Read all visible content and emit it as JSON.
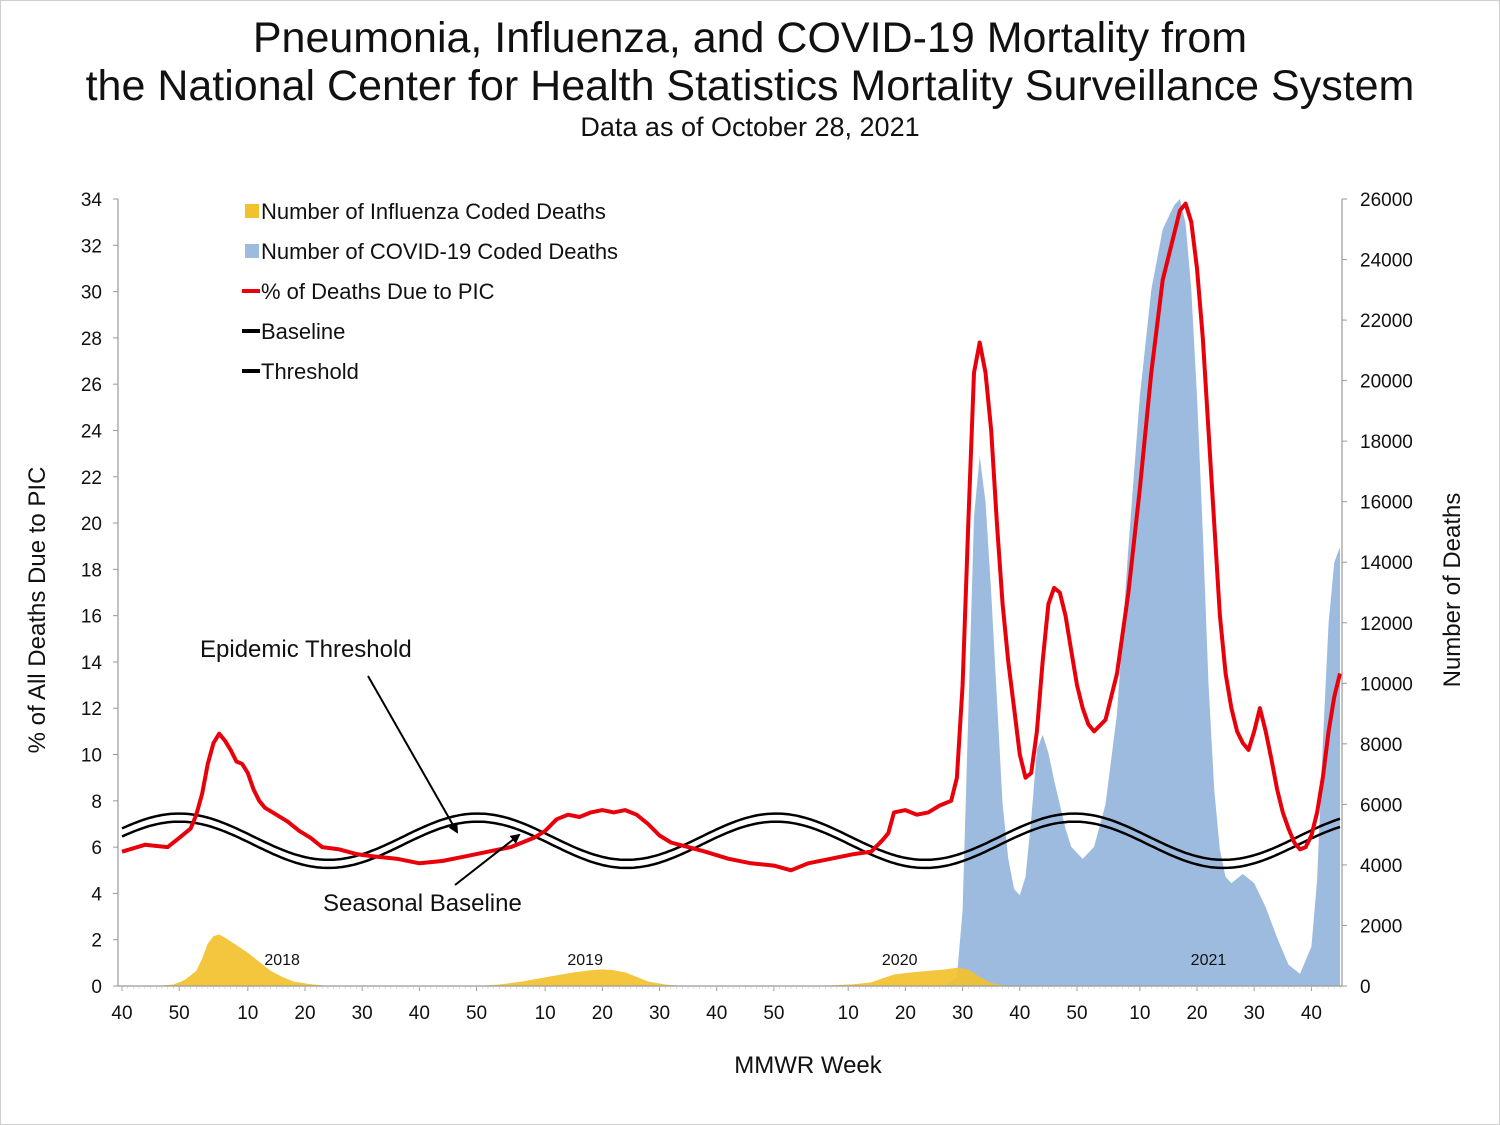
{
  "title_line1": "Pneumonia, Influenza, and COVID-19 Mortality from",
  "title_line2": "the National Center for Health Statistics Mortality Surveillance System",
  "subtitle": "Data as of October 28, 2021",
  "chart_data": {
    "type": "area",
    "xlabel": "MMWR Week",
    "ylabel_left": "% of All Deaths Due to PIC",
    "ylabel_right": "Number of Deaths",
    "ylim_left": [
      0,
      34
    ],
    "ylim_right": [
      0,
      26000
    ],
    "yticks_left": [
      "0",
      "2",
      "4",
      "6",
      "8",
      "10",
      "12",
      "14",
      "16",
      "18",
      "20",
      "22",
      "24",
      "26",
      "28",
      "30",
      "32",
      "34"
    ],
    "yticks_right": [
      "0",
      "2000",
      "4000",
      "6000",
      "8000",
      "10000",
      "12000",
      "14000",
      "16000",
      "18000",
      "20000",
      "22000",
      "24000",
      "26000"
    ],
    "xticks": [
      "40",
      "50",
      "10",
      "20",
      "30",
      "40",
      "50",
      "10",
      "20",
      "30",
      "40",
      "50",
      "10",
      "20",
      "30",
      "40",
      "50",
      "10",
      "20",
      "30",
      "40"
    ],
    "year_labels": [
      "2018",
      "2019",
      "2020",
      "2021"
    ],
    "annotations": {
      "threshold": "Epidemic Threshold",
      "baseline": "Seasonal Baseline"
    },
    "legend": [
      {
        "label": "Number of Influenza Coded Deaths",
        "color": "#f2c12e",
        "kind": "area"
      },
      {
        "label": "Number of COVID-19 Coded Deaths",
        "color": "#9dbbdf",
        "kind": "area"
      },
      {
        "label": "% of Deaths Due to PIC",
        "color": "#e8000b",
        "kind": "line"
      },
      {
        "label": "Baseline",
        "color": "#000000",
        "kind": "line"
      },
      {
        "label": "Threshold",
        "color": "#000000",
        "kind": "line"
      }
    ],
    "week_start": 0,
    "week_end": 213,
    "series_week_index": "0 = MMWR week 40 of 2017",
    "pic_percent": [
      [
        0,
        5.8
      ],
      [
        4,
        6.1
      ],
      [
        8,
        6.0
      ],
      [
        10,
        6.4
      ],
      [
        12,
        6.8
      ],
      [
        13,
        7.4
      ],
      [
        14,
        8.3
      ],
      [
        15,
        9.6
      ],
      [
        16,
        10.5
      ],
      [
        17,
        10.9
      ],
      [
        18,
        10.6
      ],
      [
        19,
        10.2
      ],
      [
        20,
        9.7
      ],
      [
        21,
        9.6
      ],
      [
        22,
        9.2
      ],
      [
        23,
        8.5
      ],
      [
        24,
        8.0
      ],
      [
        25,
        7.7
      ],
      [
        27,
        7.4
      ],
      [
        29,
        7.1
      ],
      [
        31,
        6.7
      ],
      [
        33,
        6.4
      ],
      [
        35,
        6.0
      ],
      [
        38,
        5.9
      ],
      [
        41,
        5.7
      ],
      [
        44,
        5.6
      ],
      [
        48,
        5.5
      ],
      [
        52,
        5.3
      ],
      [
        56,
        5.4
      ],
      [
        60,
        5.6
      ],
      [
        64,
        5.8
      ],
      [
        68,
        6.0
      ],
      [
        72,
        6.4
      ],
      [
        74,
        6.7
      ],
      [
        76,
        7.2
      ],
      [
        78,
        7.4
      ],
      [
        80,
        7.3
      ],
      [
        82,
        7.5
      ],
      [
        84,
        7.6
      ],
      [
        86,
        7.5
      ],
      [
        88,
        7.6
      ],
      [
        90,
        7.4
      ],
      [
        92,
        7.0
      ],
      [
        94,
        6.5
      ],
      [
        96,
        6.2
      ],
      [
        99,
        6.0
      ],
      [
        102,
        5.8
      ],
      [
        106,
        5.5
      ],
      [
        110,
        5.3
      ],
      [
        114,
        5.2
      ],
      [
        117,
        5.0
      ],
      [
        120,
        5.3
      ],
      [
        124,
        5.5
      ],
      [
        128,
        5.7
      ],
      [
        131,
        5.8
      ],
      [
        133,
        6.3
      ],
      [
        134,
        6.6
      ],
      [
        135,
        7.5
      ],
      [
        137,
        7.6
      ],
      [
        139,
        7.4
      ],
      [
        141,
        7.5
      ],
      [
        143,
        7.8
      ],
      [
        145,
        8.0
      ],
      [
        146,
        9.0
      ],
      [
        147,
        13.0
      ],
      [
        148,
        20.0
      ],
      [
        149,
        26.5
      ],
      [
        150,
        27.8
      ],
      [
        151,
        26.5
      ],
      [
        152,
        24.0
      ],
      [
        153,
        20.0
      ],
      [
        154,
        16.5
      ],
      [
        155,
        14.0
      ],
      [
        156,
        12.0
      ],
      [
        157,
        10.0
      ],
      [
        158,
        9.0
      ],
      [
        159,
        9.2
      ],
      [
        160,
        11.0
      ],
      [
        161,
        14.0
      ],
      [
        162,
        16.5
      ],
      [
        163,
        17.2
      ],
      [
        164,
        17.0
      ],
      [
        165,
        16.0
      ],
      [
        166,
        14.5
      ],
      [
        167,
        13.0
      ],
      [
        168,
        12.0
      ],
      [
        169,
        11.3
      ],
      [
        170,
        11.0
      ],
      [
        172,
        11.5
      ],
      [
        174,
        13.5
      ],
      [
        176,
        17.0
      ],
      [
        178,
        21.5
      ],
      [
        180,
        26.5
      ],
      [
        182,
        30.5
      ],
      [
        184,
        32.5
      ],
      [
        185,
        33.5
      ],
      [
        186,
        33.8
      ],
      [
        187,
        33.0
      ],
      [
        188,
        31.0
      ],
      [
        189,
        28.0
      ],
      [
        190,
        24.0
      ],
      [
        191,
        20.0
      ],
      [
        192,
        16.0
      ],
      [
        193,
        13.5
      ],
      [
        194,
        12.0
      ],
      [
        195,
        11.0
      ],
      [
        196,
        10.5
      ],
      [
        197,
        10.2
      ],
      [
        198,
        11.0
      ],
      [
        199,
        12.0
      ],
      [
        200,
        11.0
      ],
      [
        201,
        9.8
      ],
      [
        202,
        8.5
      ],
      [
        203,
        7.5
      ],
      [
        204,
        6.8
      ],
      [
        205,
        6.2
      ],
      [
        206,
        5.9
      ],
      [
        207,
        6.0
      ],
      [
        208,
        6.5
      ],
      [
        209,
        7.5
      ],
      [
        210,
        9.0
      ],
      [
        211,
        11.0
      ],
      [
        212,
        12.5
      ],
      [
        213,
        13.5
      ]
    ],
    "baseline_percent": {
      "mean": 6.1,
      "amplitude": 1.0,
      "peak_week": 10
    },
    "threshold_offset": 0.35,
    "influenza_deaths": [
      [
        0,
        0
      ],
      [
        6,
        0
      ],
      [
        9,
        50
      ],
      [
        11,
        200
      ],
      [
        13,
        500
      ],
      [
        14,
        900
      ],
      [
        15,
        1400
      ],
      [
        16,
        1650
      ],
      [
        17,
        1700
      ],
      [
        18,
        1600
      ],
      [
        20,
        1350
      ],
      [
        22,
        1100
      ],
      [
        24,
        800
      ],
      [
        26,
        500
      ],
      [
        28,
        300
      ],
      [
        30,
        150
      ],
      [
        33,
        60
      ],
      [
        36,
        10
      ],
      [
        40,
        0
      ],
      [
        62,
        0
      ],
      [
        66,
        50
      ],
      [
        70,
        150
      ],
      [
        73,
        250
      ],
      [
        76,
        350
      ],
      [
        79,
        450
      ],
      [
        82,
        520
      ],
      [
        84,
        550
      ],
      [
        86,
        520
      ],
      [
        88,
        450
      ],
      [
        90,
        300
      ],
      [
        92,
        150
      ],
      [
        95,
        50
      ],
      [
        98,
        0
      ],
      [
        118,
        0
      ],
      [
        124,
        20
      ],
      [
        128,
        60
      ],
      [
        131,
        120
      ],
      [
        133,
        250
      ],
      [
        135,
        380
      ],
      [
        138,
        450
      ],
      [
        141,
        500
      ],
      [
        144,
        550
      ],
      [
        146,
        600
      ],
      [
        148,
        550
      ],
      [
        150,
        300
      ],
      [
        152,
        100
      ],
      [
        154,
        30
      ],
      [
        157,
        0
      ],
      [
        213,
        0
      ]
    ],
    "covid_deaths": [
      [
        0,
        0
      ],
      [
        144,
        0
      ],
      [
        146,
        300
      ],
      [
        147,
        2500
      ],
      [
        148,
        9000
      ],
      [
        149,
        15500
      ],
      [
        150,
        17500
      ],
      [
        151,
        16000
      ],
      [
        152,
        13000
      ],
      [
        153,
        9500
      ],
      [
        154,
        6000
      ],
      [
        155,
        4200
      ],
      [
        156,
        3200
      ],
      [
        157,
        3000
      ],
      [
        158,
        3600
      ],
      [
        159,
        5500
      ],
      [
        160,
        7800
      ],
      [
        161,
        8300
      ],
      [
        162,
        7700
      ],
      [
        163,
        6800
      ],
      [
        164,
        6000
      ],
      [
        165,
        5200
      ],
      [
        166,
        4600
      ],
      [
        168,
        4200
      ],
      [
        170,
        4600
      ],
      [
        172,
        6000
      ],
      [
        174,
        9000
      ],
      [
        176,
        14500
      ],
      [
        178,
        19500
      ],
      [
        180,
        23000
      ],
      [
        182,
        25000
      ],
      [
        184,
        25800
      ],
      [
        185,
        26000
      ],
      [
        186,
        25200
      ],
      [
        187,
        23000
      ],
      [
        188,
        19500
      ],
      [
        189,
        15000
      ],
      [
        190,
        10000
      ],
      [
        191,
        6500
      ],
      [
        192,
        4500
      ],
      [
        193,
        3600
      ],
      [
        194,
        3400
      ],
      [
        196,
        3700
      ],
      [
        198,
        3400
      ],
      [
        200,
        2600
      ],
      [
        202,
        1600
      ],
      [
        204,
        700
      ],
      [
        206,
        400
      ],
      [
        208,
        1300
      ],
      [
        209,
        3500
      ],
      [
        210,
        8000
      ],
      [
        211,
        12000
      ],
      [
        212,
        14000
      ],
      [
        213,
        14500
      ]
    ]
  }
}
